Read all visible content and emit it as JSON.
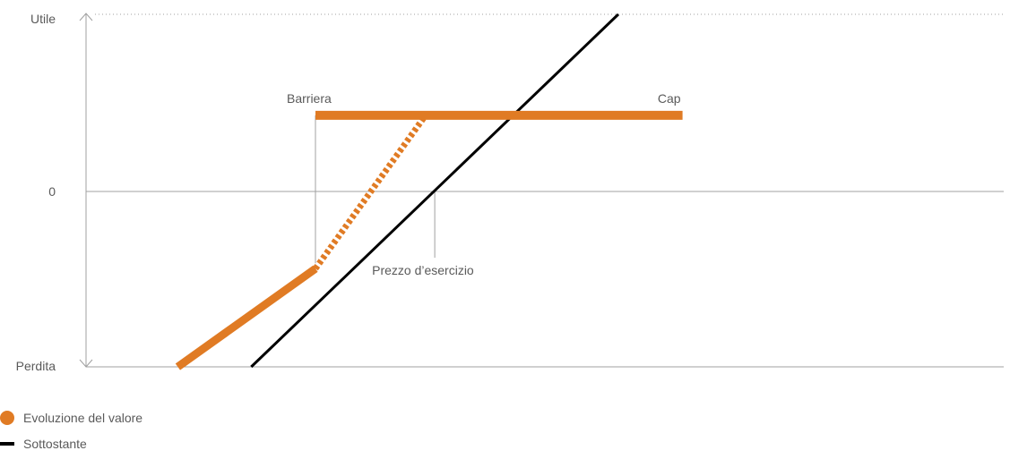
{
  "chart_data": {
    "type": "line",
    "title": "",
    "xlabel": "",
    "ylabel": "",
    "y_ticks": [
      "Utile",
      "0",
      "Perdita"
    ],
    "grid": false,
    "legend_position": "bottom-left",
    "colors": {
      "evoluzione": "#e07b24",
      "sottostante": "#000000",
      "axis": "#a0a0a0",
      "text": "#5a5a5a"
    },
    "xlim": [
      0,
      100
    ],
    "ylim": [
      -1,
      1
    ],
    "annotations": {
      "barriera": {
        "label": "Barriera",
        "x": 25
      },
      "cap": {
        "label": "Cap",
        "x": 65
      },
      "strike": {
        "label": "Prezzo d’esercizio",
        "x": 38
      }
    },
    "series": [
      {
        "name": "Sottostante",
        "segments": [
          {
            "style": "solid",
            "points": [
              [
                18,
                -1.0
              ],
              [
                58,
                1.0
              ]
            ]
          }
        ]
      },
      {
        "name": "Evoluzione del valore",
        "segments": [
          {
            "style": "solid",
            "points": [
              [
                10,
                -1.0
              ],
              [
                25,
                -0.44
              ]
            ]
          },
          {
            "style": "dashed",
            "points": [
              [
                25,
                -0.44
              ],
              [
                37,
                0.43
              ]
            ]
          },
          {
            "style": "solid",
            "points": [
              [
                25,
                0.43
              ],
              [
                65,
                0.43
              ]
            ]
          }
        ]
      }
    ]
  },
  "legend": {
    "items": [
      {
        "label": "Evoluzione del valore"
      },
      {
        "label": "Sottostante"
      }
    ]
  }
}
